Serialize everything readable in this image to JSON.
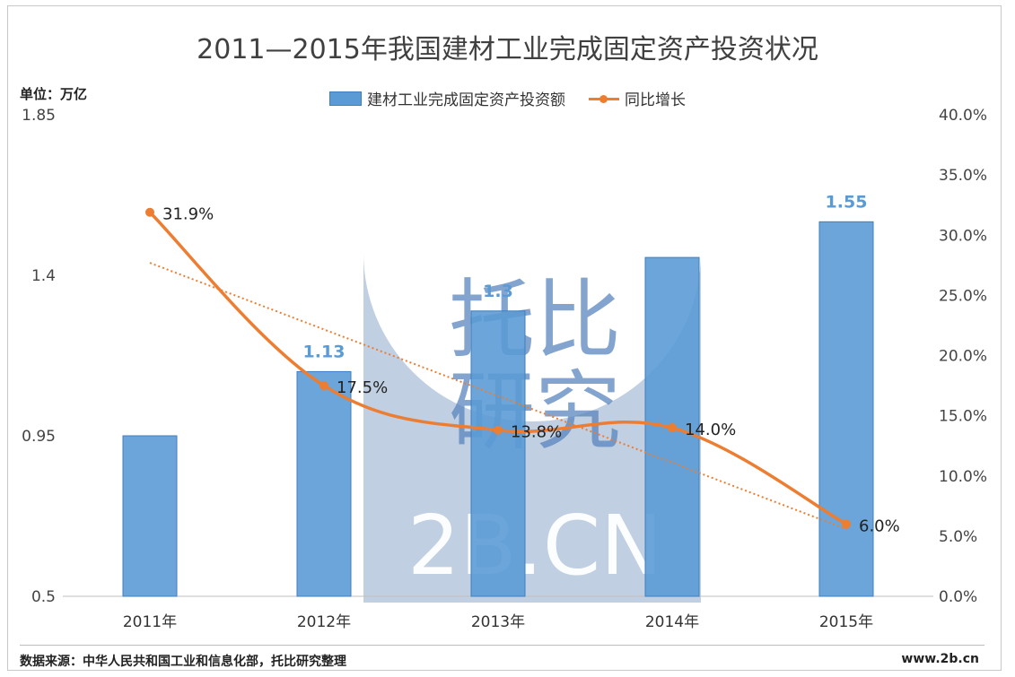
{
  "page": {
    "title": "2011—2015年我国建材工业完成固定资产投资状况",
    "unit_label": "单位：万亿",
    "source": "数据来源：中华人民共和国工业和信息化部，托比研究整理",
    "site": "www.2b.cn"
  },
  "watermark": {
    "line1": "托比",
    "line2": "研究",
    "line3": "2B.CN"
  },
  "chart_data": {
    "type": "bar",
    "title": "2011—2015年我国建材工业完成固定资产投资状况",
    "categories": [
      "2011年",
      "2012年",
      "2013年",
      "2014年",
      "2015年"
    ],
    "series": [
      {
        "name": "建材工业完成固定资产投资额",
        "type": "bar",
        "axis": "left",
        "values": [
          0.95,
          1.13,
          1.3,
          1.45,
          1.55
        ],
        "data_labels": [
          "",
          "1.13",
          "1.3",
          "",
          "1.55"
        ],
        "color": "#5b9bd5"
      },
      {
        "name": "同比增长",
        "type": "line",
        "axis": "right",
        "values": [
          31.9,
          17.5,
          13.8,
          14.0,
          6.0
        ],
        "data_labels": [
          "31.9%",
          "17.5%",
          "13.8%",
          "14.0%",
          "6.0%"
        ],
        "color": "#ed7d31",
        "trendline": "linear"
      }
    ],
    "y_left": {
      "min": 0.5,
      "max": 1.85,
      "ticks": [
        0.5,
        0.95,
        1.4,
        1.85
      ],
      "tick_labels": [
        "0.5",
        "0.95",
        "1.4",
        "1.85"
      ]
    },
    "y_right": {
      "min": 0,
      "max": 40,
      "ticks": [
        0,
        5,
        10,
        15,
        20,
        25,
        30,
        35,
        40
      ],
      "tick_labels": [
        "0.0%",
        "5.0%",
        "10.0%",
        "15.0%",
        "20.0%",
        "25.0%",
        "30.0%",
        "35.0%",
        "40.0%"
      ]
    },
    "grid": false,
    "legend_position": "top"
  }
}
